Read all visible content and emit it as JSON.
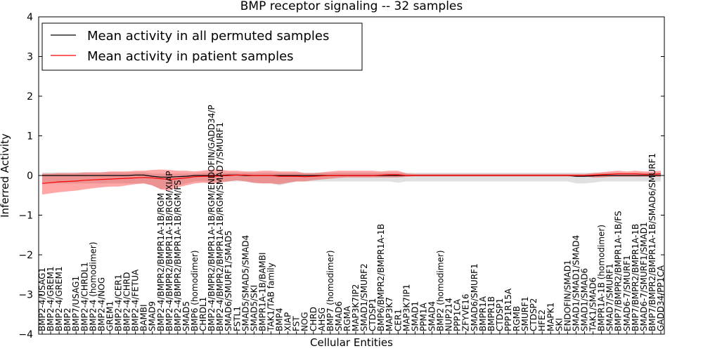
{
  "chart_data": {
    "type": "line",
    "title": "BMP receptor signaling -- 32 samples",
    "xlabel": "Cellular Entities",
    "ylabel": "Inferred Activity",
    "ylim": [
      -4,
      4
    ],
    "yticks": [
      "−4",
      "−3",
      "−2",
      "−1",
      "0",
      "1",
      "2",
      "3",
      "4"
    ],
    "legend_position": "top-left",
    "categories": [
      "BMP2-4/USAG1",
      "BMP2-4/GREM1",
      "BMP2-4/GREM1",
      "BMP2",
      "BMP7/USAG1",
      "BMP2-4/CHRDL1",
      "BMP2-4 (homodimer)",
      "BMP2-4/NOG",
      "GREM1",
      "BMP2-4/CER1",
      "BMP2-4/CHRD",
      "BMP2-4/FETUA",
      "BAMBI",
      "SMAD9",
      "BMP2-4/BMPR2/BMPR1A-1B/RGM",
      "BMP2-4/BMPR2/BMPR1A-1B/RGM/XIAP",
      "BMP2-4/BMPR2/BMPR1A-1B/RGM/FS",
      "SMAD5",
      "BMP6 (homodimer)",
      "CHRDL1",
      "BMP2-4/BMPR2/BMPR1A-1B/RGM/ENDOFIN/GADD34/P",
      "BMP2-4/BMPR2/BMPR1A-1B/RGM/SMAD7/SMURF1",
      "SMAD6/SMURF1/SMAD5",
      "FSTL1",
      "SMAD5/SMAD5/SMAD4",
      "SMAD5/SKI",
      "BMPR1A-1B/BAMBI",
      "TAK1/TAB family",
      "BMP4",
      "XIAP",
      "FST",
      "NOG",
      "CHRD",
      "AHSG",
      "BMP7 (homodimer)",
      "SMAD6",
      "RGMA",
      "MAP3K7IP2",
      "SMAD1/SMURF2",
      "CTDSP1",
      "BMP6/BMPR2/BMPR1A-1B",
      "MAP3K7",
      "CER1",
      "MAP3K7IP1",
      "SMAD1",
      "PPM1A",
      "SMAD4",
      "BMP2 (homodimer)",
      "NUP214",
      "PPP1CA",
      "ZFYVE16",
      "SMAD6/SMURF1",
      "BMPR1A",
      "BMPR1B",
      "CTDSP1",
      "PPP1R15A",
      "RGMB",
      "SMURF1",
      "CTDSP2",
      "HFE2",
      "MAPK1",
      "SKI",
      "ENDOFIN/SMAD1",
      "SMAD1/SMAD1/SMAD4",
      "SMAD1/SMAD6",
      "TAK1/SMAD6",
      "BMPR1A-1B (homodimer)",
      "SMAD7/SMURF1",
      "BMP7/BMPR2/BMPR1A-1B/FS",
      "SMAD6-7/SMURF1",
      "BMP7/BMPR2/BMPR1A-1B",
      "SMAD6-7/SMURF1/SMAD1",
      "BMP7/BMPR2/BMPR1A-1B/SMAD6/SMURF1",
      "GADD34/PP1CA"
    ],
    "series": [
      {
        "name": "Mean activity in all permuted samples",
        "color": "#000000",
        "values": [
          0,
          0,
          0,
          0,
          0,
          0,
          0,
          0,
          0,
          0,
          0,
          0.01,
          0.01,
          -0.02,
          -0.04,
          -0.04,
          -0.03,
          -0.02,
          0,
          0,
          0,
          0,
          0.01,
          0.01,
          0,
          0,
          0,
          0,
          0,
          0,
          0,
          0,
          0,
          0,
          0,
          0,
          0,
          0,
          0,
          0,
          0,
          0,
          0,
          0,
          0,
          0,
          0,
          0,
          0,
          0,
          0,
          0,
          0,
          0,
          0,
          0,
          0,
          0,
          0,
          0,
          0,
          0,
          0,
          -0.02,
          -0.02,
          -0.01,
          0,
          0,
          0,
          0,
          0,
          0,
          0,
          0
        ],
        "lower": [
          -0.2,
          -0.2,
          -0.2,
          -0.2,
          -0.2,
          -0.2,
          -0.2,
          -0.2,
          -0.2,
          -0.2,
          -0.2,
          -0.2,
          -0.2,
          -0.25,
          -0.35,
          -0.3,
          -0.25,
          -0.2,
          -0.15,
          -0.15,
          -0.15,
          -0.15,
          -0.15,
          -0.15,
          -0.15,
          -0.2,
          -0.2,
          -0.2,
          -0.25,
          -0.2,
          -0.15,
          -0.15,
          -0.15,
          -0.15,
          -0.15,
          -0.15,
          -0.15,
          -0.15,
          -0.15,
          -0.15,
          -0.15,
          -0.15,
          -0.18,
          -0.15,
          -0.15,
          -0.15,
          -0.15,
          -0.15,
          -0.15,
          -0.15,
          -0.15,
          -0.15,
          -0.15,
          -0.15,
          -0.15,
          -0.15,
          -0.15,
          -0.15,
          -0.15,
          -0.15,
          -0.15,
          -0.15,
          -0.15,
          -0.2,
          -0.2,
          -0.18,
          -0.15,
          -0.15,
          -0.15,
          -0.15,
          -0.15,
          -0.15,
          -0.15,
          -0.15
        ],
        "upper": [
          0.08,
          0.08,
          0.08,
          0.08,
          0.08,
          0.08,
          0.08,
          0.08,
          0.08,
          0.08,
          0.08,
          0.08,
          0.08,
          0.05,
          0.05,
          0.05,
          0.05,
          0.05,
          0.05,
          0.07,
          0.07,
          0.07,
          0.07,
          0.07,
          0.07,
          0.07,
          0.07,
          0.07,
          0.07,
          0.07,
          0.07,
          0.07,
          0.07,
          0.07,
          0.07,
          0.07,
          0.07,
          0.07,
          0.07,
          0.07,
          0.07,
          0.07,
          0.07,
          0.07,
          0.07,
          0.07,
          0.07,
          0.07,
          0.07,
          0.07,
          0.07,
          0.07,
          0.07,
          0.07,
          0.07,
          0.07,
          0.07,
          0.07,
          0.07,
          0.07,
          0.07,
          0.07,
          0.07,
          0.07,
          0.07,
          0.07,
          0.07,
          0.07,
          0.07,
          0.07,
          0.07,
          0.07,
          0.07,
          0.07
        ]
      },
      {
        "name": "Mean activity in patient samples",
        "color": "#ff0000",
        "values": [
          -0.2,
          -0.18,
          -0.16,
          -0.15,
          -0.14,
          -0.12,
          -0.11,
          -0.1,
          -0.09,
          -0.08,
          -0.07,
          -0.06,
          -0.05,
          -0.06,
          -0.08,
          -0.1,
          -0.08,
          -0.06,
          -0.03,
          -0.02,
          -0.02,
          -0.01,
          0,
          0.01,
          0.01,
          0,
          0,
          0,
          -0.02,
          -0.02,
          -0.02,
          -0.03,
          -0.02,
          -0.01,
          0,
          0,
          0,
          0,
          0,
          0,
          0.01,
          0.02,
          0.02,
          0,
          0,
          0,
          0,
          0,
          0,
          0,
          0,
          0,
          0,
          0,
          0,
          0,
          0,
          0,
          0,
          0,
          0,
          0,
          0,
          0,
          0,
          0.01,
          0.02,
          0.03,
          0.04,
          0.04,
          0.04,
          0.03,
          0.03,
          0.04
        ],
        "lower": [
          -0.48,
          -0.45,
          -0.42,
          -0.4,
          -0.38,
          -0.35,
          -0.32,
          -0.3,
          -0.28,
          -0.28,
          -0.25,
          -0.22,
          -0.2,
          -0.25,
          -0.35,
          -0.38,
          -0.3,
          -0.25,
          -0.2,
          -0.18,
          -0.2,
          -0.18,
          -0.15,
          -0.12,
          -0.15,
          -0.18,
          -0.2,
          -0.2,
          -0.22,
          -0.18,
          -0.15,
          -0.15,
          -0.12,
          -0.1,
          -0.08,
          -0.06,
          -0.05,
          -0.05,
          -0.05,
          -0.05,
          -0.05,
          -0.05,
          -0.05,
          -0.03,
          -0.02,
          -0.02,
          -0.02,
          -0.02,
          -0.02,
          -0.02,
          -0.02,
          -0.02,
          -0.02,
          -0.02,
          -0.02,
          -0.02,
          -0.02,
          -0.02,
          -0.02,
          -0.02,
          -0.02,
          -0.02,
          -0.02,
          -0.02,
          -0.02,
          -0.05,
          -0.05,
          -0.03,
          -0.03,
          -0.03,
          -0.03,
          -0.03,
          -0.03,
          -0.03
        ],
        "upper": [
          0.05,
          0.05,
          0.06,
          0.06,
          0.06,
          0.08,
          0.08,
          0.08,
          0.1,
          0.1,
          0.1,
          0.12,
          0.12,
          0.14,
          0.15,
          0.14,
          0.12,
          0.12,
          0.1,
          0.12,
          0.15,
          0.15,
          0.12,
          0.12,
          0.1,
          0.1,
          0.12,
          0.12,
          0.1,
          0.1,
          0.1,
          0.06,
          0.06,
          0.08,
          0.1,
          0.12,
          0.12,
          0.12,
          0.12,
          0.12,
          0.1,
          0.12,
          0.12,
          0.05,
          0.04,
          0.04,
          0.04,
          0.04,
          0.04,
          0.04,
          0.04,
          0.04,
          0.04,
          0.04,
          0.04,
          0.04,
          0.04,
          0.04,
          0.04,
          0.04,
          0.04,
          0.04,
          0.04,
          0.04,
          0.04,
          0.06,
          0.08,
          0.1,
          0.12,
          0.1,
          0.12,
          0.1,
          0.1,
          0.12
        ]
      }
    ]
  }
}
